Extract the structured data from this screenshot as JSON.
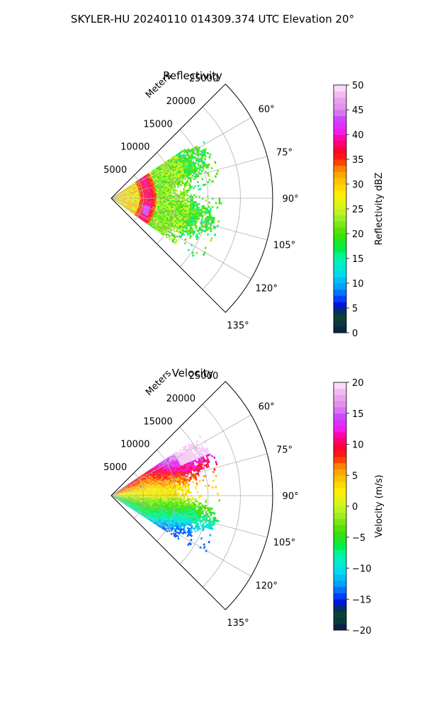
{
  "figure": {
    "title": "SKYLER-HU  20240110  014309.374 UTC Elevation 20°"
  },
  "chart_data": [
    {
      "type": "polar-sector",
      "field": "reflectivity",
      "title": "Reflectivity",
      "radial_label": "Meters",
      "radial_ticks": [
        5000,
        10000,
        15000,
        20000,
        25000
      ],
      "r_max": 25000,
      "theta_range_deg": [
        45,
        135
      ],
      "theta_ticks": [
        60,
        75,
        90,
        105,
        120,
        135
      ],
      "theta_tick_labels": [
        "60°",
        "75°",
        "90°",
        "105°",
        "120°",
        "135°"
      ],
      "data_extent": {
        "r_max_m": 17000,
        "theta_min_deg": 56,
        "theta_max_deg": 125
      },
      "colorbar": {
        "label": "Reflectivity dBZ",
        "vmin": 0,
        "vmax": 50,
        "ticks": [
          0,
          5,
          10,
          15,
          20,
          25,
          30,
          35,
          40,
          45,
          50
        ],
        "tick_labels": [
          "0",
          "5",
          "10",
          "15",
          "20",
          "25",
          "30",
          "35",
          "40",
          "45",
          "50"
        ],
        "stops": [
          [
            0.0,
            "#0a1a4a"
          ],
          [
            0.04,
            "#0b3a3a"
          ],
          [
            0.08,
            "#0a4a2a"
          ],
          [
            0.1,
            "#0000cc"
          ],
          [
            0.14,
            "#0044ff"
          ],
          [
            0.18,
            "#0099ff"
          ],
          [
            0.24,
            "#00ddee"
          ],
          [
            0.3,
            "#00f5b0"
          ],
          [
            0.34,
            "#00ee44"
          ],
          [
            0.4,
            "#44dd00"
          ],
          [
            0.46,
            "#99ee22"
          ],
          [
            0.5,
            "#ccf522"
          ],
          [
            0.56,
            "#ffee00"
          ],
          [
            0.62,
            "#ffbb00"
          ],
          [
            0.66,
            "#ff8800"
          ],
          [
            0.7,
            "#ff2200"
          ],
          [
            0.74,
            "#ff0033"
          ],
          [
            0.78,
            "#ff0099"
          ],
          [
            0.82,
            "#ee22ff"
          ],
          [
            0.86,
            "#cc44ff"
          ],
          [
            0.9,
            "#dd88ee"
          ],
          [
            0.95,
            "#eeaaee"
          ],
          [
            1.0,
            "#ffe8ff"
          ]
        ]
      }
    },
    {
      "type": "polar-sector",
      "field": "velocity",
      "title": "Velocity",
      "radial_label": "Meters",
      "radial_ticks": [
        5000,
        10000,
        15000,
        20000,
        25000
      ],
      "r_max": 25000,
      "theta_range_deg": [
        45,
        135
      ],
      "theta_ticks": [
        60,
        75,
        90,
        105,
        120,
        135
      ],
      "theta_tick_labels": [
        "60°",
        "75°",
        "90°",
        "105°",
        "120°",
        "135°"
      ],
      "data_extent": {
        "r_max_m": 17000,
        "theta_min_deg": 56,
        "theta_max_deg": 123
      },
      "colorbar": {
        "label": "Velocity (m/s)",
        "vmin": -20,
        "vmax": 20,
        "ticks": [
          -20,
          -15,
          -10,
          -5,
          0,
          5,
          10,
          15,
          20
        ],
        "tick_labels": [
          "−20",
          "−15",
          "−10",
          "−5",
          "0",
          "5",
          "10",
          "15",
          "20"
        ],
        "stops": [
          [
            0.0,
            "#0a1a4a"
          ],
          [
            0.04,
            "#0b3a3a"
          ],
          [
            0.08,
            "#0a4a2a"
          ],
          [
            0.1,
            "#0000cc"
          ],
          [
            0.14,
            "#0044ff"
          ],
          [
            0.18,
            "#0099ff"
          ],
          [
            0.24,
            "#00ddee"
          ],
          [
            0.3,
            "#00f5b0"
          ],
          [
            0.34,
            "#00ee44"
          ],
          [
            0.4,
            "#44dd00"
          ],
          [
            0.46,
            "#99ee22"
          ],
          [
            0.5,
            "#ccf522"
          ],
          [
            0.56,
            "#ffee00"
          ],
          [
            0.62,
            "#ffbb00"
          ],
          [
            0.66,
            "#ff8800"
          ],
          [
            0.7,
            "#ff2200"
          ],
          [
            0.74,
            "#ff0033"
          ],
          [
            0.78,
            "#ff0099"
          ],
          [
            0.82,
            "#ee22ff"
          ],
          [
            0.86,
            "#cc44ff"
          ],
          [
            0.9,
            "#dd88ee"
          ],
          [
            0.95,
            "#eeaaee"
          ],
          [
            1.0,
            "#ffe8ff"
          ]
        ]
      }
    }
  ]
}
